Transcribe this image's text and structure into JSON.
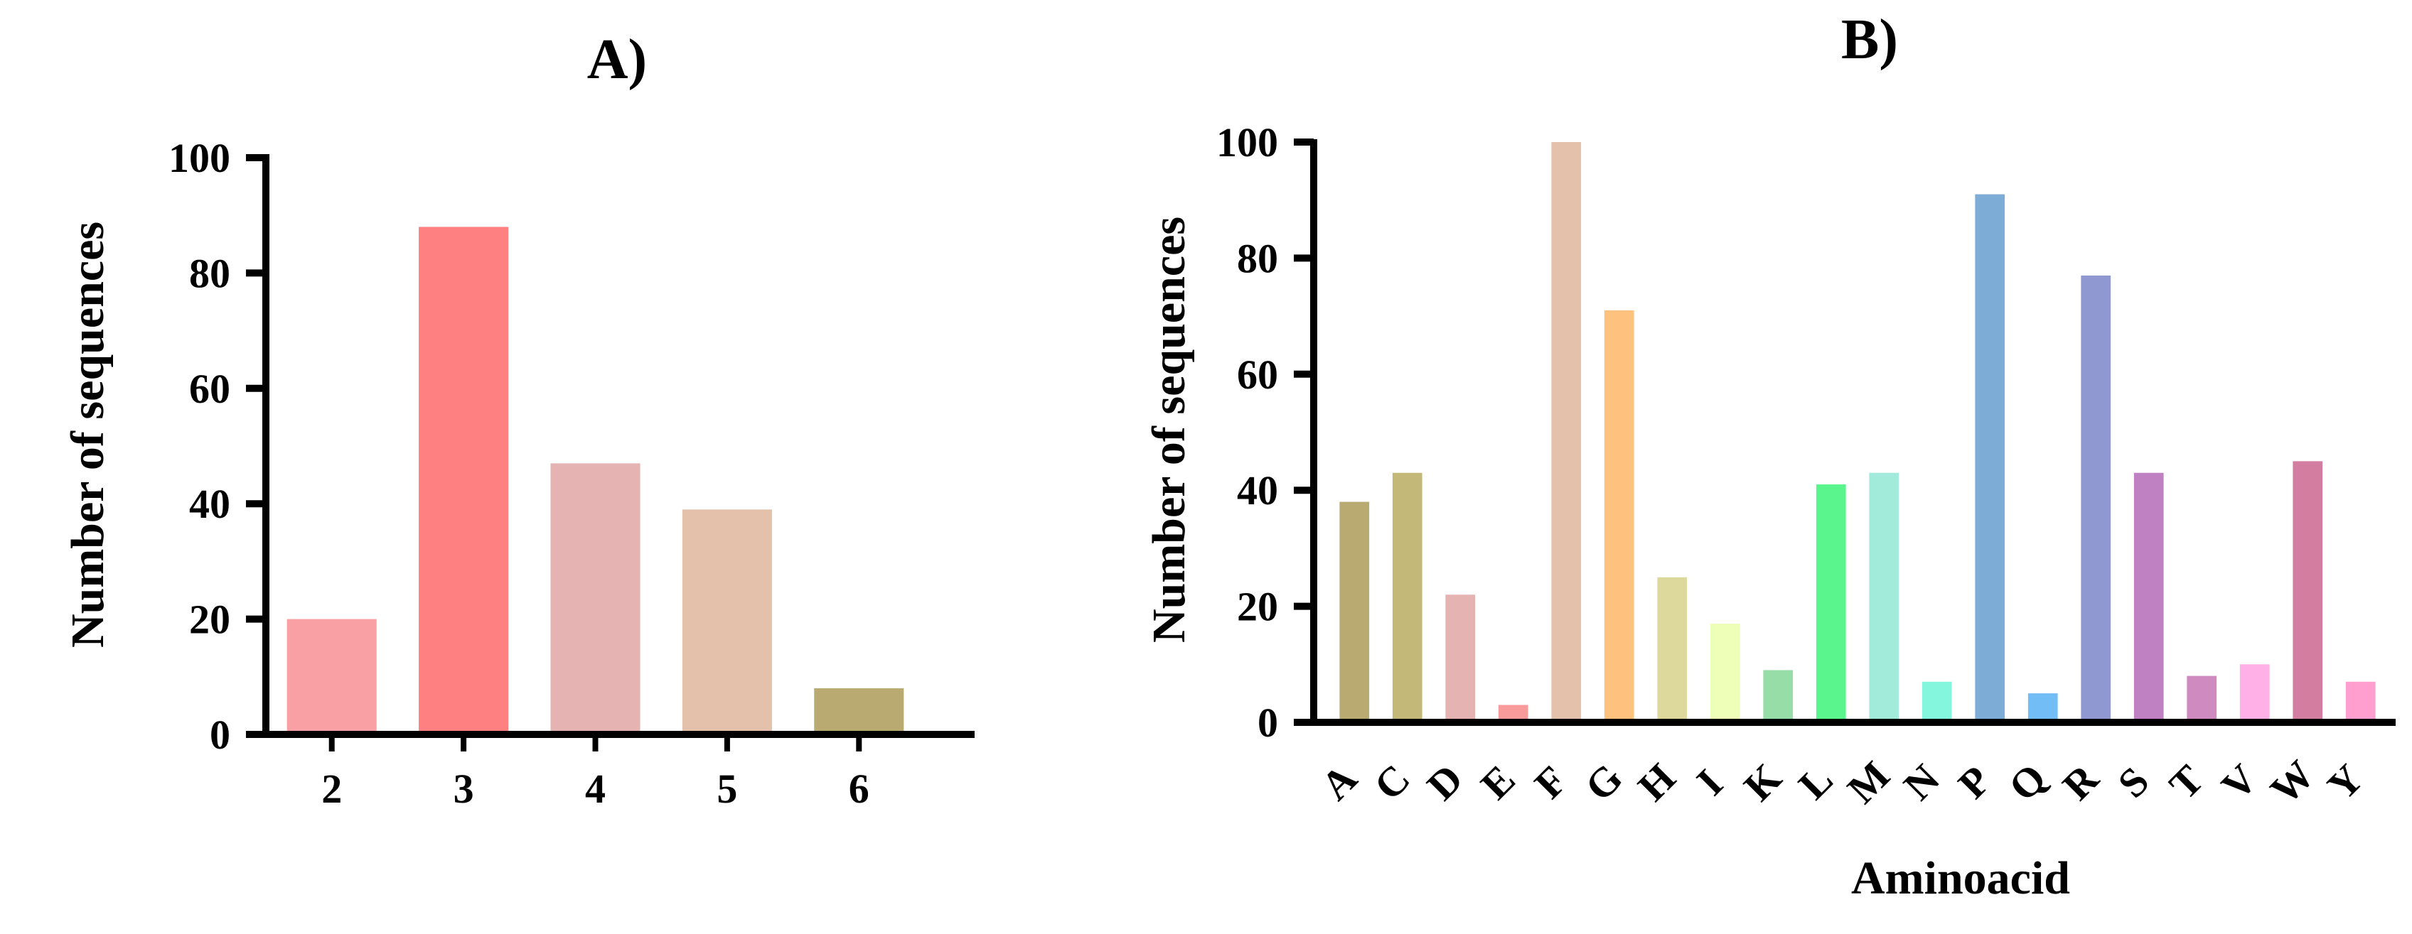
{
  "chart_data": [
    {
      "type": "bar",
      "title": "A)",
      "xlabel": "",
      "ylabel": "Number of sequences",
      "ylim": [
        0,
        100
      ],
      "yticks": [
        0,
        20,
        40,
        60,
        80,
        100
      ],
      "categories": [
        "2",
        "3",
        "4",
        "5",
        "6"
      ],
      "values": [
        20,
        88,
        47,
        39,
        8
      ],
      "colors": [
        "#f9a0a4",
        "#fe8081",
        "#e5b3b2",
        "#e3c1ab",
        "#b8aa71"
      ],
      "grid": false,
      "legend": "none"
    },
    {
      "type": "bar",
      "title": "B)",
      "xlabel": "Aminoacid",
      "ylabel": "Number of sequences",
      "ylim": [
        0,
        100
      ],
      "yticks": [
        0,
        20,
        40,
        60,
        80,
        100
      ],
      "categories": [
        "A",
        "C",
        "D",
        "E",
        "F",
        "G",
        "H",
        "I",
        "K",
        "L",
        "M",
        "N",
        "P",
        "Q",
        "R",
        "S",
        "T",
        "V",
        "W",
        "Y"
      ],
      "values": [
        38,
        43,
        22,
        3,
        100,
        71,
        25,
        17,
        9,
        41,
        43,
        7,
        91,
        5,
        77,
        43,
        8,
        10,
        45,
        7
      ],
      "colors": [
        "#b8aa71",
        "#c4b879",
        "#e5b3b2",
        "#f99b9b",
        "#e3c1ab",
        "#fec27e",
        "#ddd99d",
        "#eeffb7",
        "#96dda8",
        "#5af58c",
        "#a2ead9",
        "#84f6dd",
        "#7dacd6",
        "#72bdf6",
        "#8f98d0",
        "#c081c2",
        "#cf8bbf",
        "#ffb0e6",
        "#d37ea0",
        "#ff9fd0"
      ],
      "grid": false,
      "legend": "none"
    }
  ]
}
